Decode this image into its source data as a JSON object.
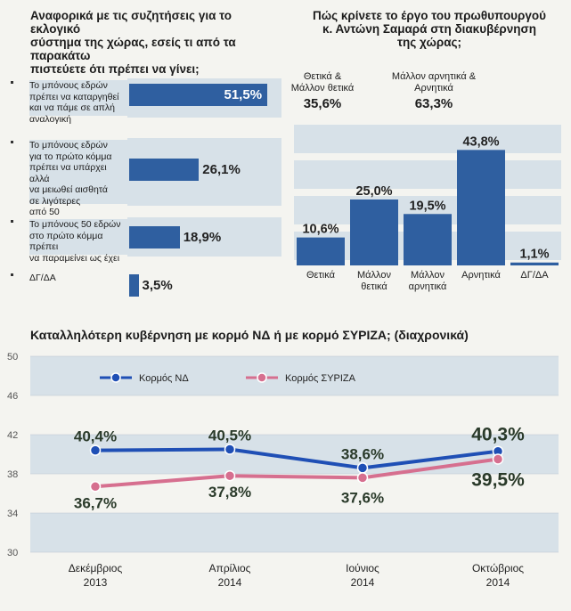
{
  "colors": {
    "bar_blue": "#2f5fa0",
    "band": "#d7e1e8",
    "nd_blue": "#1f4fb5",
    "syriza_pink": "#d66f8f"
  },
  "chart_data": [
    {
      "type": "bar",
      "orientation": "horizontal",
      "title": "Αναφορικά με τις συζητήσεις για το εκλογικό\nσύστημα της χώρας, εσείς τι από τα παρακάτω\nπιστεύετε ότι πρέπει να γίνει;",
      "categories": [
        "Το μπόνους εδρών\nπρέπει να καταργηθεί\nκαι να πάμε σε απλή\nαναλογική",
        "Το μπόνους εδρών\nγια το πρώτο κόμμα\nπρέπει να υπάρχει αλλά\nνα μειωθεί αισθητά\nσε λιγότερες\nαπό 50",
        "Το μπόνους 50 εδρών\nστο πρώτο κόμμα πρέπει\nνα παραμείνει ως έχει",
        "ΔΓ/ΔΑ"
      ],
      "values": [
        51.5,
        26.1,
        18.9,
        3.5
      ],
      "value_labels": [
        "51,5%",
        "26,1%",
        "18,9%",
        "3,5%"
      ],
      "xlim": [
        0,
        60
      ]
    },
    {
      "type": "bar",
      "title": "Πώς κρίνετε το έργο  του πρωθυπουργού\nκ. Αντώνη Σαμαρά στη διακυβέρνηση\nτης χώρας;",
      "categories": [
        "Θετικά",
        "Μάλλον\nθετικά",
        "Μάλλον\nαρνητικά",
        "Αρνητικά",
        "ΔΓ/ΔΑ"
      ],
      "values": [
        10.6,
        25.0,
        19.5,
        43.8,
        1.1
      ],
      "value_labels": [
        "10,6%",
        "25,0%",
        "19,5%",
        "43,8%",
        "1,1%"
      ],
      "ylim": [
        0,
        50
      ],
      "summary": [
        {
          "label": "Θετικά &\nΜάλλον θετικά",
          "value": 35.6,
          "value_label": "35,6%"
        },
        {
          "label": "Μάλλον αρνητικά &\nΑρνητικά",
          "value": 63.3,
          "value_label": "63,3%"
        }
      ]
    },
    {
      "type": "line",
      "title": "Καταλληλότερη κυβέρνηση με κορμό ΝΔ ή με κορμό ΣΥΡΙΖΑ; (διαχρονικά)",
      "categories": [
        "Δεκέμβριος\n2013",
        "Απρίλιος\n2014",
        "Ιούνιος\n2014",
        "Οκτώβριος\n2014"
      ],
      "ylim": [
        30,
        50
      ],
      "yticks": [
        30,
        34,
        38,
        42,
        46,
        50
      ],
      "series": [
        {
          "name": "Κορμός ΝΔ",
          "color": "#1f4fb5",
          "values": [
            40.4,
            40.5,
            38.6,
            40.3
          ],
          "labels": [
            "40,4%",
            "40,5%",
            "38,6%",
            "40,3%"
          ]
        },
        {
          "name": "Κορμός ΣΥΡΙΖΑ",
          "color": "#d66f8f",
          "values": [
            36.7,
            37.8,
            37.6,
            39.5
          ],
          "labels": [
            "36,7%",
            "37,8%",
            "37,6%",
            "39,5%"
          ]
        }
      ]
    }
  ]
}
